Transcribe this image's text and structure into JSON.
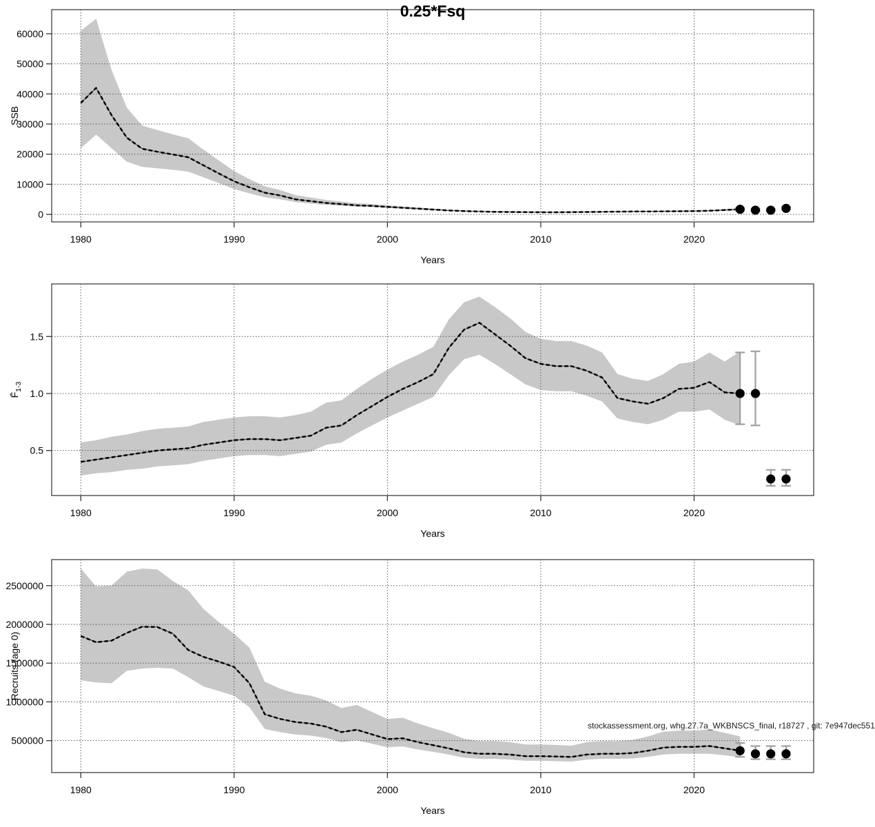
{
  "figure": {
    "title": "0.25*Fsq"
  },
  "annotation": "stockassessment.org, whg.27.7a_WKBNSCS_final, r18727 , git: 7e947dec551",
  "colors": {
    "band": "#c8c8c8",
    "line": "#000000",
    "grid": "#555555",
    "box": "#4d4d4d",
    "whisker": "#a0a0a0",
    "dot": "#000000"
  },
  "chart_data": [
    {
      "type": "area",
      "title": "0.25*Fsq",
      "xlabel": "Years",
      "ylabel": "SSB",
      "x_ticks": [
        1980,
        1990,
        2000,
        2010,
        2020
      ],
      "y_tick_values": [
        0,
        10000,
        20000,
        30000,
        40000,
        50000,
        60000
      ],
      "y_tick_labels": [
        "0",
        "10000",
        "20000",
        "30000",
        "40000",
        "50000",
        "60000"
      ],
      "xlim": [
        1978.1,
        2027.8
      ],
      "ylim": [
        -2500,
        68000
      ],
      "grid": true,
      "legend": "none",
      "years": [
        1980,
        1981,
        1982,
        1983,
        1984,
        1985,
        1986,
        1987,
        1988,
        1989,
        1990,
        1991,
        1992,
        1993,
        1994,
        1995,
        1996,
        1997,
        1998,
        1999,
        2000,
        2001,
        2002,
        2003,
        2004,
        2005,
        2006,
        2007,
        2008,
        2009,
        2010,
        2011,
        2012,
        2013,
        2014,
        2015,
        2016,
        2017,
        2018,
        2019,
        2020,
        2021,
        2022,
        2023
      ],
      "median": [
        37000,
        42000,
        33000,
        25500,
        21800,
        20800,
        19900,
        19000,
        16300,
        13600,
        11000,
        9000,
        7200,
        6300,
        5000,
        4400,
        3800,
        3400,
        3000,
        2800,
        2500,
        2200,
        1900,
        1600,
        1300,
        1100,
        950,
        850,
        800,
        750,
        700,
        700,
        750,
        800,
        850,
        900,
        950,
        950,
        1000,
        1050,
        1100,
        1200,
        1450,
        1700
      ],
      "lower": [
        22000,
        26500,
        22000,
        17500,
        15800,
        15300,
        14800,
        14200,
        12300,
        10400,
        8400,
        7000,
        5700,
        5000,
        4100,
        3600,
        3150,
        2850,
        2550,
        2400,
        2150,
        1900,
        1650,
        1400,
        1150,
        970,
        840,
        750,
        710,
        660,
        620,
        620,
        660,
        710,
        750,
        790,
        840,
        840,
        880,
        920,
        960,
        1040,
        1230,
        1380
      ],
      "upper": [
        61000,
        65000,
        48000,
        35500,
        29500,
        28000,
        26600,
        25300,
        21500,
        17900,
        14400,
        11700,
        9300,
        8100,
        6400,
        5600,
        4800,
        4250,
        3700,
        3450,
        3050,
        2670,
        2300,
        1930,
        1560,
        1320,
        1130,
        1010,
        950,
        890,
        830,
        830,
        890,
        950,
        1010,
        1070,
        1130,
        1130,
        1190,
        1250,
        1310,
        1430,
        1730,
        2100
      ],
      "forecast_points": {
        "years": [
          2023,
          2024,
          2025,
          2026
        ],
        "values": [
          1700,
          1400,
          1400,
          2000
        ],
        "lo": [
          1400,
          1150,
          1150,
          1650
        ],
        "hi": [
          2100,
          1750,
          1750,
          2450
        ]
      }
    },
    {
      "type": "area",
      "title": "",
      "xlabel": "Years",
      "ylabel": "F̄1-3",
      "ylabel_main": "F̄",
      "ylabel_sub": "1-3",
      "x_ticks": [
        1980,
        1990,
        2000,
        2010,
        2020
      ],
      "y_tick_values": [
        0.5,
        1.0,
        1.5
      ],
      "y_tick_labels": [
        "0.5",
        "1.0",
        "1.5"
      ],
      "xlim": [
        1978.1,
        2027.8
      ],
      "ylim": [
        0.105,
        1.961
      ],
      "grid": true,
      "legend": "none",
      "years": [
        1980,
        1981,
        1982,
        1983,
        1984,
        1985,
        1986,
        1987,
        1988,
        1989,
        1990,
        1991,
        1992,
        1993,
        1994,
        1995,
        1996,
        1997,
        1998,
        1999,
        2000,
        2001,
        2002,
        2003,
        2004,
        2005,
        2006,
        2007,
        2008,
        2009,
        2010,
        2011,
        2012,
        2013,
        2014,
        2015,
        2016,
        2017,
        2018,
        2019,
        2020,
        2021,
        2022,
        2023
      ],
      "median": [
        0.4,
        0.42,
        0.44,
        0.46,
        0.48,
        0.5,
        0.51,
        0.52,
        0.55,
        0.57,
        0.59,
        0.6,
        0.6,
        0.59,
        0.61,
        0.63,
        0.7,
        0.72,
        0.81,
        0.89,
        0.97,
        1.04,
        1.1,
        1.17,
        1.4,
        1.56,
        1.62,
        1.52,
        1.42,
        1.31,
        1.26,
        1.24,
        1.24,
        1.2,
        1.14,
        0.96,
        0.93,
        0.91,
        0.96,
        1.04,
        1.05,
        1.1,
        1.01,
        1.0
      ],
      "lower": [
        0.28,
        0.3,
        0.31,
        0.33,
        0.34,
        0.36,
        0.37,
        0.38,
        0.41,
        0.43,
        0.45,
        0.46,
        0.46,
        0.45,
        0.47,
        0.49,
        0.55,
        0.57,
        0.65,
        0.72,
        0.79,
        0.85,
        0.91,
        0.97,
        1.16,
        1.3,
        1.34,
        1.26,
        1.17,
        1.08,
        1.03,
        1.02,
        1.02,
        0.98,
        0.93,
        0.78,
        0.75,
        0.73,
        0.77,
        0.84,
        0.84,
        0.86,
        0.77,
        0.72
      ],
      "upper": [
        0.57,
        0.59,
        0.62,
        0.64,
        0.67,
        0.69,
        0.7,
        0.71,
        0.75,
        0.77,
        0.79,
        0.8,
        0.8,
        0.79,
        0.81,
        0.84,
        0.92,
        0.94,
        1.04,
        1.13,
        1.21,
        1.28,
        1.34,
        1.41,
        1.65,
        1.8,
        1.85,
        1.76,
        1.66,
        1.54,
        1.48,
        1.46,
        1.46,
        1.42,
        1.36,
        1.17,
        1.13,
        1.11,
        1.17,
        1.26,
        1.28,
        1.36,
        1.28,
        1.37
      ],
      "forecast_points": {
        "years": [
          2023,
          2024,
          2025,
          2026
        ],
        "values": [
          1.0,
          1.0,
          0.25,
          0.25
        ],
        "lo": [
          0.73,
          0.72,
          0.19,
          0.19
        ],
        "hi": [
          1.36,
          1.37,
          0.33,
          0.33
        ]
      }
    },
    {
      "type": "area",
      "title": "",
      "xlabel": "Years",
      "ylabel": "Recruits (age 0)",
      "x_ticks": [
        1980,
        1990,
        2000,
        2010,
        2020
      ],
      "y_tick_values": [
        500000,
        1000000,
        1500000,
        2000000,
        2500000
      ],
      "y_tick_labels": [
        "500000",
        "1000000",
        "1500000",
        "2000000",
        "2500000"
      ],
      "xlim": [
        1978.1,
        2027.8
      ],
      "ylim": [
        88000,
        2836000
      ],
      "grid": true,
      "legend": "none",
      "years": [
        1980,
        1981,
        1982,
        1983,
        1984,
        1985,
        1986,
        1987,
        1988,
        1989,
        1990,
        1991,
        1992,
        1993,
        1994,
        1995,
        1996,
        1997,
        1998,
        1999,
        2000,
        2001,
        2002,
        2003,
        2004,
        2005,
        2006,
        2007,
        2008,
        2009,
        2010,
        2011,
        2012,
        2013,
        2014,
        2015,
        2016,
        2017,
        2018,
        2019,
        2020,
        2021,
        2022,
        2023
      ],
      "median": [
        1850000,
        1770000,
        1790000,
        1890000,
        1970000,
        1965000,
        1880000,
        1670000,
        1580000,
        1520000,
        1450000,
        1240000,
        840000,
        780000,
        740000,
        720000,
        680000,
        610000,
        640000,
        580000,
        520000,
        530000,
        480000,
        440000,
        400000,
        350000,
        330000,
        330000,
        320000,
        300000,
        300000,
        295000,
        290000,
        320000,
        330000,
        330000,
        340000,
        370000,
        410000,
        420000,
        420000,
        430000,
        400000,
        370000
      ],
      "lower": [
        1280000,
        1250000,
        1240000,
        1400000,
        1430000,
        1440000,
        1430000,
        1320000,
        1200000,
        1140000,
        1080000,
        930000,
        650000,
        610000,
        580000,
        565000,
        535000,
        480000,
        505000,
        460000,
        415000,
        425000,
        385000,
        355000,
        320000,
        280000,
        265000,
        265000,
        255000,
        240000,
        240000,
        235000,
        230000,
        255000,
        265000,
        265000,
        270000,
        290000,
        320000,
        330000,
        330000,
        330000,
        310000,
        285000
      ],
      "upper": [
        2720000,
        2490000,
        2500000,
        2680000,
        2720000,
        2710000,
        2560000,
        2440000,
        2200000,
        2030000,
        1880000,
        1700000,
        1260000,
        1170000,
        1110000,
        1080000,
        1020000,
        920000,
        960000,
        870000,
        780000,
        795000,
        720000,
        660000,
        600000,
        525000,
        495000,
        495000,
        480000,
        450000,
        450000,
        445000,
        435000,
        480000,
        495000,
        495000,
        510000,
        555000,
        615000,
        630000,
        630000,
        645000,
        600000,
        555000
      ],
      "forecast_points": {
        "years": [
          2023,
          2024,
          2025,
          2026
        ],
        "values": [
          370000,
          330000,
          330000,
          330000
        ],
        "lo": [
          290000,
          260000,
          260000,
          260000
        ],
        "hi": [
          470000,
          430000,
          430000,
          430000
        ]
      }
    }
  ]
}
